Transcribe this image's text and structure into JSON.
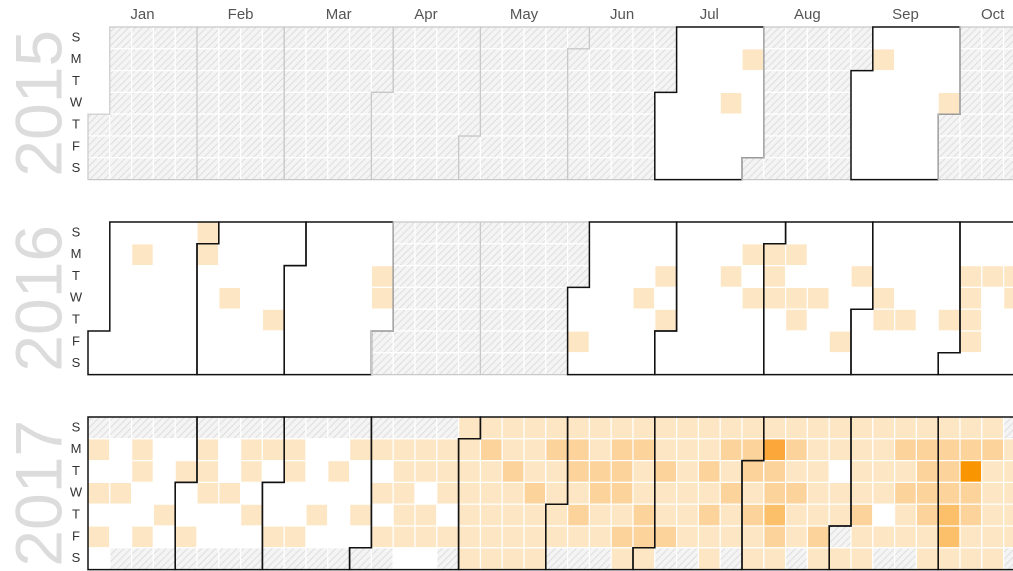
{
  "chart_data": {
    "type": "calendar-heatmap",
    "months": [
      "Jan",
      "Feb",
      "Mar",
      "Apr",
      "May",
      "Jun",
      "Jul",
      "Aug",
      "Sep",
      "Oct"
    ],
    "weekdays": [
      "S",
      "M",
      "T",
      "W",
      "T",
      "F",
      "S"
    ],
    "colors": [
      "#ffffff",
      "#fde6c4",
      "#fdd39c",
      "#fcc06a",
      "#fba73a",
      "#f99500"
    ],
    "years": [
      {
        "label": "2015",
        "values": [
          null,
          null,
          null,
          null,
          null,
          null,
          null,
          null,
          null,
          null,
          null,
          null,
          null,
          null,
          null,
          null,
          null,
          null,
          null,
          null,
          null,
          null,
          null,
          null,
          null,
          null,
          null,
          null,
          null,
          null,
          null,
          null,
          null,
          null,
          null,
          null,
          null,
          null,
          null,
          null,
          null,
          null,
          null,
          null,
          null,
          null,
          null,
          null,
          null,
          null,
          null,
          null,
          null,
          null,
          null,
          null,
          null,
          null,
          null,
          null,
          null,
          null,
          null,
          null,
          null,
          null,
          null,
          null,
          null,
          null,
          null,
          null,
          null,
          null,
          null,
          null,
          null,
          null,
          null,
          null,
          null,
          null,
          null,
          null,
          null,
          null,
          null,
          null,
          null,
          null,
          null,
          null,
          null,
          null,
          null,
          null,
          null,
          null,
          null,
          null,
          null,
          null,
          null,
          null,
          null,
          null,
          null,
          null,
          null,
          null,
          null,
          null,
          null,
          null,
          null,
          null,
          null,
          null,
          null,
          null,
          null,
          null,
          null,
          null,
          null,
          null,
          null,
          null,
          null,
          null,
          null,
          null,
          null,
          null,
          null,
          null,
          null,
          null,
          null,
          null,
          null,
          null,
          null,
          null,
          null,
          null,
          null,
          null,
          null,
          null,
          null,
          null,
          null,
          null,
          null,
          null,
          null,
          null,
          null,
          null,
          null,
          null,
          null,
          null,
          null,
          null,
          null,
          null,
          null,
          null,
          null,
          null,
          null,
          null,
          null,
          null,
          null,
          null,
          null,
          null,
          null,
          0,
          0,
          0,
          0,
          0,
          0,
          0,
          0,
          0,
          0,
          0,
          0,
          0,
          0,
          0,
          0,
          0,
          0,
          0,
          0,
          0,
          1,
          0,
          0,
          0,
          0,
          1,
          0,
          0,
          0,
          0,
          null,
          null,
          null,
          null,
          null,
          null,
          null,
          null,
          null,
          null,
          null,
          null,
          null,
          null,
          null,
          null,
          null,
          null,
          null,
          null,
          null,
          null,
          null,
          null,
          null,
          null,
          null,
          null,
          null,
          null,
          null,
          0,
          0,
          0,
          0,
          0,
          0,
          1,
          0,
          0,
          0,
          0,
          0,
          0,
          0,
          0,
          0,
          0,
          0,
          0,
          0,
          0,
          0,
          0,
          0,
          0,
          0,
          0,
          0,
          0,
          1,
          null,
          null,
          null,
          null,
          null,
          null,
          null,
          null,
          null,
          null,
          null,
          null,
          null,
          null,
          null,
          null,
          null,
          null,
          null,
          null,
          null,
          null,
          null,
          null
        ]
      },
      {
        "label": "2016",
        "values": [
          0,
          0,
          0,
          0,
          0,
          0,
          0,
          0,
          0,
          0,
          1,
          0,
          0,
          0,
          0,
          0,
          0,
          0,
          0,
          0,
          0,
          0,
          0,
          0,
          0,
          0,
          0,
          0,
          0,
          0,
          1,
          1,
          0,
          0,
          0,
          0,
          0,
          0,
          0,
          0,
          1,
          0,
          0,
          0,
          0,
          0,
          0,
          0,
          0,
          0,
          0,
          0,
          0,
          0,
          0,
          1,
          0,
          0,
          0,
          0,
          0,
          0,
          0,
          0,
          0,
          0,
          0,
          0,
          0,
          0,
          0,
          0,
          0,
          0,
          0,
          0,
          0,
          0,
          0,
          0,
          0,
          0,
          0,
          0,
          0,
          0,
          0,
          0,
          1,
          1,
          0,
          null,
          null,
          null,
          null,
          null,
          null,
          null,
          null,
          null,
          null,
          null,
          null,
          null,
          null,
          null,
          null,
          null,
          null,
          null,
          null,
          null,
          null,
          null,
          null,
          null,
          null,
          null,
          null,
          null,
          null,
          null,
          null,
          null,
          null,
          null,
          null,
          null,
          null,
          null,
          null,
          null,
          null,
          null,
          null,
          null,
          null,
          null,
          null,
          null,
          null,
          null,
          null,
          null,
          null,
          null,
          null,
          null,
          null,
          null,
          null,
          null,
          0,
          0,
          1,
          0,
          0,
          0,
          0,
          0,
          0,
          0,
          0,
          0,
          0,
          0,
          0,
          0,
          0,
          0,
          0,
          0,
          0,
          1,
          0,
          0,
          0,
          0,
          0,
          1,
          0,
          1,
          0,
          0,
          0,
          0,
          0,
          0,
          0,
          0,
          0,
          0,
          0,
          0,
          0,
          0,
          0,
          0,
          0,
          0,
          1,
          0,
          0,
          0,
          0,
          0,
          1,
          0,
          1,
          0,
          0,
          0,
          0,
          1,
          1,
          1,
          0,
          0,
          0,
          0,
          1,
          0,
          1,
          1,
          0,
          0,
          0,
          0,
          0,
          1,
          0,
          0,
          0,
          0,
          0,
          0,
          0,
          0,
          1,
          0,
          0,
          0,
          1,
          0,
          0,
          0,
          0,
          0,
          0,
          0,
          1,
          1,
          0,
          0,
          0,
          0,
          0,
          0,
          1,
          0,
          0,
          0,
          0,
          0,
          0,
          0,
          0,
          0,
          0,
          0,
          0,
          0,
          1,
          0,
          0,
          0,
          0,
          1,
          1,
          1,
          1,
          0,
          0,
          0,
          1,
          0,
          0,
          0,
          0,
          0,
          0,
          1,
          1,
          0,
          0,
          0
        ]
      },
      {
        "label": "2017",
        "values": [
          null,
          1,
          0,
          1,
          0,
          1,
          0,
          null,
          0,
          0,
          1,
          0,
          0,
          null,
          null,
          1,
          1,
          0,
          0,
          1,
          null,
          null,
          0,
          0,
          0,
          1,
          0,
          null,
          null,
          0,
          1,
          0,
          0,
          1,
          null,
          null,
          1,
          1,
          1,
          0,
          0,
          null,
          null,
          0,
          0,
          1,
          0,
          0,
          null,
          null,
          1,
          1,
          0,
          1,
          0,
          null,
          null,
          1,
          0,
          0,
          0,
          1,
          null,
          null,
          1,
          1,
          0,
          0,
          1,
          null,
          null,
          0,
          0,
          0,
          1,
          0,
          null,
          null,
          0,
          1,
          0,
          0,
          0,
          null,
          null,
          1,
          0,
          0,
          1,
          0,
          null,
          null,
          1,
          0,
          1,
          0,
          1,
          null,
          null,
          1,
          1,
          1,
          1,
          1,
          0,
          null,
          1,
          1,
          0,
          1,
          1,
          0,
          null,
          1,
          1,
          1,
          0,
          1,
          null,
          1,
          1,
          1,
          1,
          1,
          1,
          1,
          1,
          2,
          1,
          1,
          1,
          1,
          1,
          1,
          1,
          2,
          1,
          1,
          1,
          1,
          1,
          1,
          1,
          2,
          1,
          1,
          1,
          1,
          2,
          1,
          1,
          1,
          1,
          null,
          1,
          2,
          2,
          1,
          2,
          1,
          null,
          1,
          1,
          2,
          2,
          1,
          1,
          null,
          1,
          2,
          2,
          2,
          1,
          2,
          1,
          1,
          2,
          1,
          1,
          2,
          2,
          1,
          1,
          1,
          2,
          1,
          1,
          2,
          null,
          1,
          1,
          1,
          1,
          1,
          1,
          null,
          1,
          1,
          2,
          1,
          2,
          1,
          1,
          1,
          2,
          1,
          2,
          1,
          1,
          null,
          1,
          2,
          2,
          1,
          2,
          1,
          1,
          1,
          4,
          2,
          2,
          3,
          2,
          1,
          1,
          2,
          1,
          2,
          1,
          1,
          null,
          1,
          1,
          1,
          1,
          1,
          2,
          1,
          1,
          1,
          0,
          1,
          1,
          null,
          1,
          1,
          1,
          1,
          1,
          2,
          1,
          1,
          1,
          1,
          1,
          1,
          0,
          1,
          null,
          1,
          2,
          1,
          2,
          1,
          1,
          null,
          1,
          2,
          2,
          2,
          2,
          1,
          1,
          1,
          2,
          2,
          2,
          3,
          3,
          1,
          1,
          2,
          5,
          2,
          2,
          1,
          1,
          1,
          2,
          1,
          1,
          1,
          1,
          1,
          null,
          1,
          1,
          1,
          1,
          1,
          null
        ]
      }
    ]
  }
}
